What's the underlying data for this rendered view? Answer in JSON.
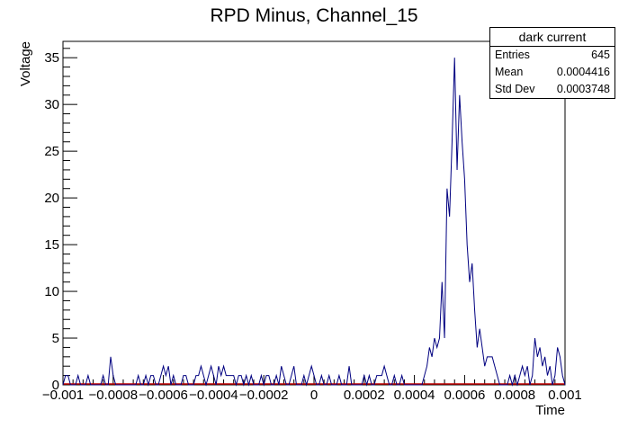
{
  "chart_data": {
    "type": "histogram",
    "title": "RPD Minus, Channel_15",
    "xlabel": "Time",
    "ylabel": "Voltage",
    "xlim": [
      -0.001,
      0.001
    ],
    "ylim": [
      0,
      36.75
    ],
    "xticks": [
      -0.001,
      -0.0008,
      -0.0006,
      -0.0004,
      -0.0002,
      0,
      0.0002,
      0.0004,
      0.0006,
      0.0008,
      0.001
    ],
    "xtick_labels": [
      "−0.001",
      "−0.0008",
      "−0.0006",
      "−0.0004",
      "−0.0002",
      "0",
      "0.0002",
      "0.0004",
      "0.0006",
      "0.0008",
      "0.001"
    ],
    "yticks": [
      0,
      5,
      10,
      15,
      20,
      25,
      30,
      35
    ],
    "ytick_labels": [
      "0",
      "5",
      "10",
      "15",
      "20",
      "25",
      "30",
      "35"
    ],
    "line_color": "#000080",
    "baseline_color": "#c00000",
    "series": [
      {
        "x": [
          -0.001,
          -0.00099,
          -0.00098,
          -0.00097,
          -0.00096,
          -0.00095,
          -0.00094,
          -0.00093,
          -0.00092,
          -0.00091,
          -0.0009,
          -0.00089,
          -0.00088,
          -0.00087,
          -0.00086,
          -0.00085,
          -0.00084,
          -0.00083,
          -0.00082,
          -0.00081,
          -0.0008,
          -0.00079,
          -0.00078,
          -0.00077,
          -0.00076,
          -0.00075,
          -0.00074,
          -0.00073,
          -0.00072,
          -0.00071,
          -0.0007,
          -0.00069,
          -0.00068,
          -0.00067,
          -0.00066,
          -0.00065,
          -0.00064,
          -0.00063,
          -0.00062,
          -0.00061,
          -0.0006,
          -0.00059,
          -0.00058,
          -0.00057,
          -0.00056,
          -0.00055,
          -0.00054,
          -0.00053,
          -0.00052,
          -0.00051,
          -0.0005,
          -0.00049,
          -0.00048,
          -0.00047,
          -0.00046,
          -0.00045,
          -0.00044,
          -0.00043,
          -0.00042,
          -0.00041,
          -0.0004,
          -0.00039,
          -0.00038,
          -0.00037,
          -0.00036,
          -0.00035,
          -0.00034,
          -0.00033,
          -0.00032,
          -0.00031,
          -0.0003,
          -0.00029,
          -0.00028,
          -0.00027,
          -0.00026,
          -0.00025,
          -0.00024,
          -0.00023,
          -0.00022,
          -0.00021,
          -0.0002,
          -0.00019,
          -0.00018,
          -0.00017,
          -0.00016,
          -0.00015,
          -0.00014,
          -0.00013,
          -0.00012,
          -0.00011,
          -0.0001,
          -9e-05,
          -8e-05,
          -7e-05,
          -6e-05,
          -5e-05,
          -4e-05,
          -3e-05,
          -2e-05,
          -1e-05,
          0,
          1e-05,
          2e-05,
          3e-05,
          4e-05,
          5e-05,
          6e-05,
          7e-05,
          8e-05,
          9e-05,
          0.0001,
          0.00011,
          0.00012,
          0.00013,
          0.00014,
          0.00015,
          0.00016,
          0.00017,
          0.00018,
          0.00019,
          0.0002,
          0.00021,
          0.00022,
          0.00023,
          0.00024,
          0.00025,
          0.00026,
          0.00027,
          0.00028,
          0.00029,
          0.0003,
          0.00031,
          0.00032,
          0.00033,
          0.00034,
          0.00035,
          0.00036,
          0.00037,
          0.00038,
          0.00039,
          0.0004,
          0.00041,
          0.00042,
          0.00043,
          0.00044,
          0.00045,
          0.00046,
          0.00047,
          0.00048,
          0.00049,
          0.0005,
          0.00051,
          0.00052,
          0.00053,
          0.00054,
          0.00055,
          0.00056,
          0.00057,
          0.00058,
          0.00059,
          0.0006,
          0.00061,
          0.00062,
          0.00063,
          0.00064,
          0.00065,
          0.00066,
          0.00067,
          0.00068,
          0.00069,
          0.0007,
          0.00071,
          0.00072,
          0.00073,
          0.00074,
          0.00075,
          0.00076,
          0.00077,
          0.00078,
          0.00079,
          0.0008,
          0.00081,
          0.00082,
          0.00083,
          0.00084,
          0.00085,
          0.00086,
          0.00087,
          0.00088,
          0.00089,
          0.0009,
          0.00091,
          0.00092,
          0.00093,
          0.00094,
          0.00095,
          0.00096,
          0.00097,
          0.00098,
          0.00099,
          0.001
        ],
        "y": [
          0,
          1,
          1,
          0,
          0,
          0,
          1,
          0,
          0,
          0,
          1,
          0,
          0,
          0,
          0,
          0,
          1,
          0,
          0,
          3,
          1,
          0,
          0,
          0,
          0,
          0,
          0,
          0,
          0,
          0,
          1,
          0,
          0,
          1,
          0,
          1,
          1,
          0,
          0,
          1,
          2,
          1,
          2,
          0,
          1,
          0,
          0,
          0,
          1,
          1,
          0,
          0,
          0,
          1,
          1,
          2,
          1,
          0,
          1,
          2,
          1,
          0,
          2,
          1,
          2,
          1,
          1,
          1,
          1,
          0,
          1,
          1,
          0,
          1,
          0,
          1,
          0,
          0,
          0,
          1,
          0,
          1,
          1,
          0,
          0,
          1,
          0,
          2,
          1,
          0,
          0,
          1,
          2,
          0,
          0,
          0,
          1,
          0,
          1,
          2,
          1,
          0,
          0,
          1,
          0,
          0,
          1,
          0,
          0,
          0,
          1,
          0,
          0,
          0,
          2,
          0,
          0,
          0,
          0,
          0,
          1,
          0,
          1,
          0,
          0,
          1,
          1,
          1,
          2,
          1,
          0,
          0,
          1,
          0,
          0,
          1,
          0,
          0,
          0,
          0,
          0,
          0,
          0,
          0,
          1,
          2,
          4,
          3,
          5,
          4,
          5,
          11,
          5,
          21,
          18,
          26,
          35,
          23,
          31,
          26,
          22,
          15,
          11,
          13,
          8,
          4,
          6,
          4,
          2,
          3,
          3,
          3,
          2,
          1,
          0,
          0,
          0,
          0,
          1,
          0,
          1,
          0,
          1,
          2,
          1,
          2,
          0,
          1,
          5,
          3,
          4,
          2,
          3,
          1,
          2,
          0,
          1,
          4,
          3,
          1,
          0
        ]
      }
    ],
    "stats": {
      "name": "dark current",
      "rows": [
        {
          "label": "Entries",
          "value": "645"
        },
        {
          "label": "Mean",
          "value": "0.0004416"
        },
        {
          "label": "Std Dev",
          "value": "0.0003748"
        }
      ]
    }
  }
}
